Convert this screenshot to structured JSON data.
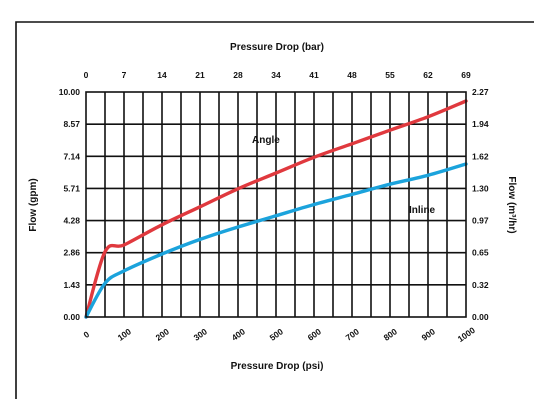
{
  "chart_data": {
    "type": "line",
    "title": "",
    "top_axis": {
      "label": "Pressure Drop (bar)",
      "ticks": [
        "0",
        "7",
        "14",
        "21",
        "28",
        "34",
        "41",
        "48",
        "55",
        "62",
        "69"
      ]
    },
    "bottom_axis": {
      "label": "Pressure Drop (psi)",
      "ticks": [
        "0",
        "100",
        "200",
        "300",
        "400",
        "500",
        "600",
        "700",
        "800",
        "900",
        "1000"
      ],
      "range": [
        0,
        1000
      ]
    },
    "left_axis": {
      "label": "Flow (gpm)",
      "ticks": [
        "10.00",
        "8.57",
        "7.14",
        "5.71",
        "4.28",
        "2.86",
        "1.43",
        "0.00"
      ],
      "range": [
        0,
        10
      ]
    },
    "right_axis": {
      "label": "Flow (m³/hr)",
      "ticks": [
        "2.27",
        "1.94",
        "1.62",
        "1.30",
        "0.97",
        "0.65",
        "0.32",
        "0.00"
      ],
      "range": [
        0,
        2.27
      ]
    },
    "grid": true,
    "x": [
      0,
      50,
      100,
      200,
      300,
      400,
      500,
      600,
      700,
      800,
      900,
      1000
    ],
    "series": [
      {
        "name": "Angle",
        "color": "#e0393e",
        "values": [
          0,
          2.9,
          3.2,
          4.1,
          4.9,
          5.7,
          6.4,
          7.1,
          7.7,
          8.3,
          8.9,
          9.6
        ]
      },
      {
        "name": "Inline",
        "color": "#1ba3dc",
        "values": [
          0,
          1.5,
          2.05,
          2.8,
          3.45,
          4.0,
          4.5,
          5.0,
          5.45,
          5.9,
          6.3,
          6.8
        ]
      }
    ]
  }
}
